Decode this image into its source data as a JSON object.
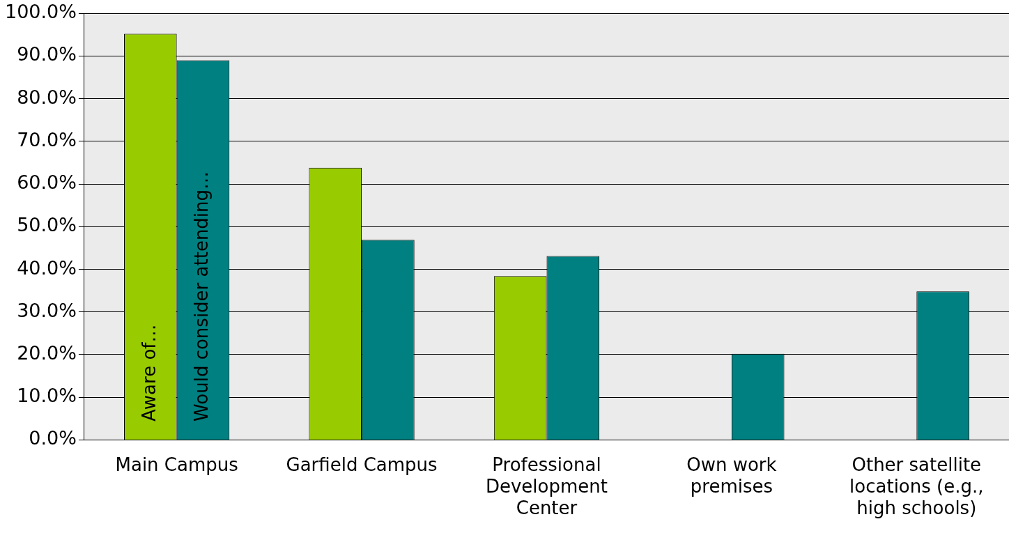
{
  "chart_data": {
    "type": "bar",
    "categories": [
      "Main Campus",
      "Garfield Campus",
      "Professional Development Center",
      "Own work premises",
      "Other satellite locations (e.g., high schools)"
    ],
    "series": [
      {
        "name": "Aware of…",
        "color": "#99cc00",
        "values": [
          95.2,
          63.8,
          38.4,
          null,
          null
        ]
      },
      {
        "name": "Would consider attending…",
        "color": "#008080",
        "values": [
          89.0,
          46.9,
          43.1,
          20.2,
          34.8
        ]
      }
    ],
    "ylim": [
      0,
      100
    ],
    "yticks": [
      {
        "value": 0,
        "label": "0.0%"
      },
      {
        "value": 10,
        "label": "10.0%"
      },
      {
        "value": 20,
        "label": "20.0%"
      },
      {
        "value": 30,
        "label": "30.0%"
      },
      {
        "value": 40,
        "label": "40.0%"
      },
      {
        "value": 50,
        "label": "50.0%"
      },
      {
        "value": 60,
        "label": "60.0%"
      },
      {
        "value": 70,
        "label": "70.0%"
      },
      {
        "value": 80,
        "label": "80.0%"
      },
      {
        "value": 90,
        "label": "90.0%"
      },
      {
        "value": 100,
        "label": "100.0%"
      }
    ],
    "grid": "y",
    "legend": false
  }
}
